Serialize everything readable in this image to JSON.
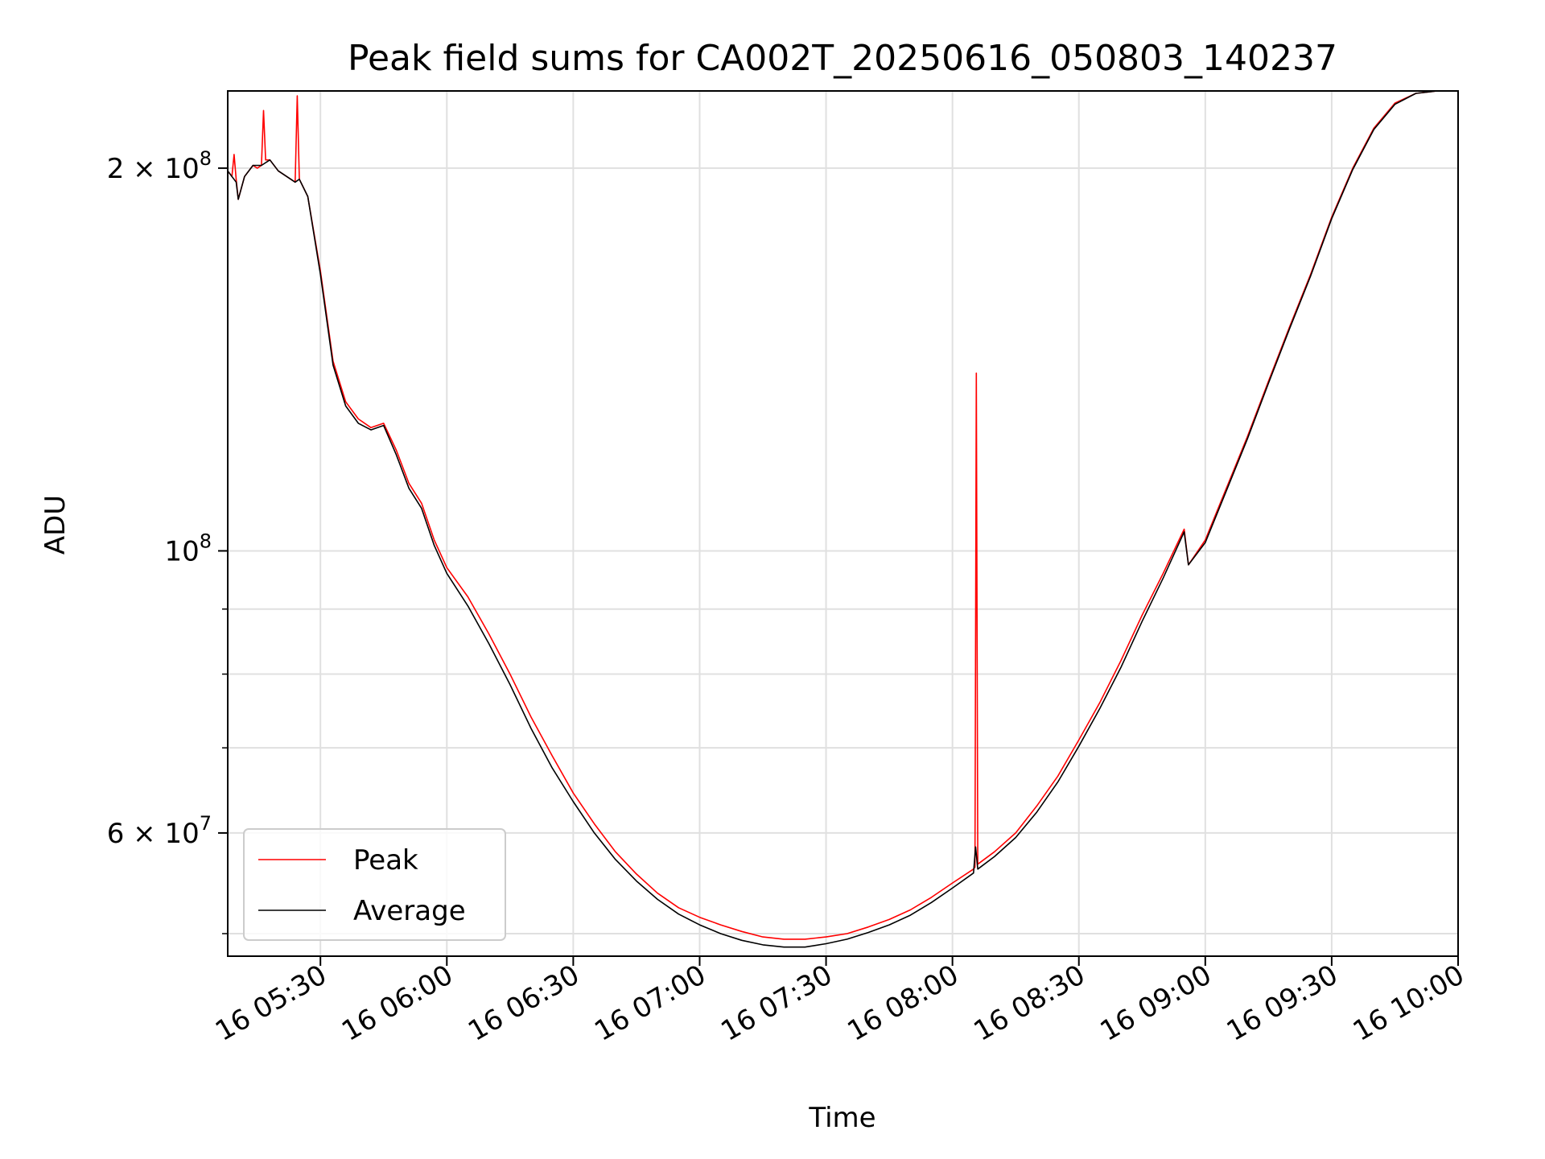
{
  "chart_data": {
    "type": "line",
    "title": "Peak field sums for CA002T_20250616_050803_140237",
    "xlabel": "Time",
    "ylabel": "ADU",
    "y_scale": "log",
    "ylim": [
      48000000,
      230000000
    ],
    "xlim": [
      "2025-06-16 05:08",
      "2025-06-16 10:00"
    ],
    "x_ticks": [
      {
        "t": "2025-06-16 05:30",
        "label": "16 05:30"
      },
      {
        "t": "2025-06-16 06:00",
        "label": "16 06:00"
      },
      {
        "t": "2025-06-16 06:30",
        "label": "16 06:30"
      },
      {
        "t": "2025-06-16 07:00",
        "label": "16 07:00"
      },
      {
        "t": "2025-06-16 07:30",
        "label": "16 07:30"
      },
      {
        "t": "2025-06-16 08:00",
        "label": "16 08:00"
      },
      {
        "t": "2025-06-16 08:30",
        "label": "16 08:30"
      },
      {
        "t": "2025-06-16 09:00",
        "label": "16 09:00"
      },
      {
        "t": "2025-06-16 09:30",
        "label": "16 09:30"
      },
      {
        "t": "2025-06-16 10:00",
        "label": "16 10:00"
      }
    ],
    "y_major_ticks": [
      {
        "v": 100000000,
        "base": "10",
        "exp": "8"
      },
      {
        "v": 200000000,
        "base": "2 × 10",
        "exp": "8"
      },
      {
        "v": 60000000,
        "base": "6 × 10",
        "exp": "7"
      }
    ],
    "y_minor_ticks": [
      50000000,
      70000000,
      80000000,
      90000000
    ],
    "grid": true,
    "legend_position": "lower-left",
    "series": [
      {
        "name": "Peak",
        "color": "#ff0000",
        "points": [
          [
            "2025-06-16 05:08",
            199000000
          ],
          [
            "2025-06-16 05:09",
            197000000
          ],
          [
            "2025-06-16 05:09:30",
            205000000
          ],
          [
            "2025-06-16 05:10",
            196000000
          ],
          [
            "2025-06-16 05:10:30",
            189000000
          ],
          [
            "2025-06-16 05:12",
            197000000
          ],
          [
            "2025-06-16 05:14",
            201000000
          ],
          [
            "2025-06-16 05:15",
            200000000
          ],
          [
            "2025-06-16 05:16",
            201000000
          ],
          [
            "2025-06-16 05:16:30",
            222000000
          ],
          [
            "2025-06-16 05:17",
            203000000
          ],
          [
            "2025-06-16 05:18",
            203000000
          ],
          [
            "2025-06-16 05:20",
            199000000
          ],
          [
            "2025-06-16 05:22",
            197000000
          ],
          [
            "2025-06-16 05:24",
            195000000
          ],
          [
            "2025-06-16 05:24:30",
            228000000
          ],
          [
            "2025-06-16 05:25",
            196000000
          ],
          [
            "2025-06-16 05:27",
            190000000
          ],
          [
            "2025-06-16 05:30",
            166000000
          ],
          [
            "2025-06-16 05:33",
            141000000
          ],
          [
            "2025-06-16 05:36",
            131000000
          ],
          [
            "2025-06-16 05:39",
            127000000
          ],
          [
            "2025-06-16 05:42",
            125000000
          ],
          [
            "2025-06-16 05:45",
            126000000
          ],
          [
            "2025-06-16 05:48",
            120000000
          ],
          [
            "2025-06-16 05:51",
            113000000
          ],
          [
            "2025-06-16 05:54",
            109000000
          ],
          [
            "2025-06-16 05:57",
            102000000
          ],
          [
            "2025-06-16 06:00",
            97000000
          ],
          [
            "2025-06-16 06:05",
            92000000
          ],
          [
            "2025-06-16 06:10",
            86000000
          ],
          [
            "2025-06-16 06:15",
            80000000
          ],
          [
            "2025-06-16 06:20",
            74000000
          ],
          [
            "2025-06-16 06:25",
            69000000
          ],
          [
            "2025-06-16 06:30",
            64500000
          ],
          [
            "2025-06-16 06:35",
            61000000
          ],
          [
            "2025-06-16 06:40",
            58000000
          ],
          [
            "2025-06-16 06:45",
            55700000
          ],
          [
            "2025-06-16 06:50",
            53800000
          ],
          [
            "2025-06-16 06:55",
            52400000
          ],
          [
            "2025-06-16 07:00",
            51500000
          ],
          [
            "2025-06-16 07:05",
            50800000
          ],
          [
            "2025-06-16 07:10",
            50200000
          ],
          [
            "2025-06-16 07:15",
            49700000
          ],
          [
            "2025-06-16 07:20",
            49500000
          ],
          [
            "2025-06-16 07:25",
            49500000
          ],
          [
            "2025-06-16 07:30",
            49700000
          ],
          [
            "2025-06-16 07:35",
            50000000
          ],
          [
            "2025-06-16 07:40",
            50600000
          ],
          [
            "2025-06-16 07:45",
            51300000
          ],
          [
            "2025-06-16 07:50",
            52200000
          ],
          [
            "2025-06-16 07:55",
            53400000
          ],
          [
            "2025-06-16 08:00",
            54800000
          ],
          [
            "2025-06-16 08:05",
            56200000
          ],
          [
            "2025-06-16 08:05:20",
            56400000
          ],
          [
            "2025-06-16 08:05:40",
            138000000
          ],
          [
            "2025-06-16 08:06",
            56700000
          ],
          [
            "2025-06-16 08:10",
            58000000
          ],
          [
            "2025-06-16 08:15",
            60000000
          ],
          [
            "2025-06-16 08:20",
            63000000
          ],
          [
            "2025-06-16 08:25",
            66500000
          ],
          [
            "2025-06-16 08:30",
            71000000
          ],
          [
            "2025-06-16 08:35",
            76000000
          ],
          [
            "2025-06-16 08:40",
            82000000
          ],
          [
            "2025-06-16 08:45",
            89000000
          ],
          [
            "2025-06-16 08:50",
            96000000
          ],
          [
            "2025-06-16 08:55",
            104000000
          ],
          [
            "2025-06-16 08:56",
            97500000
          ],
          [
            "2025-06-16 09:00",
            102000000
          ],
          [
            "2025-06-16 09:05",
            112000000
          ],
          [
            "2025-06-16 09:10",
            123000000
          ],
          [
            "2025-06-16 09:15",
            136000000
          ],
          [
            "2025-06-16 09:20",
            150000000
          ],
          [
            "2025-06-16 09:25",
            165000000
          ],
          [
            "2025-06-16 09:30",
            183000000
          ],
          [
            "2025-06-16 09:35",
            200000000
          ],
          [
            "2025-06-16 09:40",
            215000000
          ],
          [
            "2025-06-16 09:45",
            225000000
          ],
          [
            "2025-06-16 09:50",
            229000000
          ],
          [
            "2025-06-16 09:55",
            230000000
          ],
          [
            "2025-06-16 10:00",
            230000000
          ]
        ]
      },
      {
        "name": "Average",
        "color": "#000000",
        "points": [
          [
            "2025-06-16 05:08",
            199000000
          ],
          [
            "2025-06-16 05:09",
            197000000
          ],
          [
            "2025-06-16 05:10",
            195000000
          ],
          [
            "2025-06-16 05:10:30",
            189000000
          ],
          [
            "2025-06-16 05:12",
            197000000
          ],
          [
            "2025-06-16 05:14",
            201000000
          ],
          [
            "2025-06-16 05:16",
            201000000
          ],
          [
            "2025-06-16 05:18",
            203000000
          ],
          [
            "2025-06-16 05:20",
            199000000
          ],
          [
            "2025-06-16 05:22",
            197000000
          ],
          [
            "2025-06-16 05:24",
            195000000
          ],
          [
            "2025-06-16 05:25",
            196000000
          ],
          [
            "2025-06-16 05:27",
            190000000
          ],
          [
            "2025-06-16 05:30",
            165000000
          ],
          [
            "2025-06-16 05:33",
            140000000
          ],
          [
            "2025-06-16 05:36",
            130000000
          ],
          [
            "2025-06-16 05:39",
            126000000
          ],
          [
            "2025-06-16 05:42",
            124500000
          ],
          [
            "2025-06-16 05:45",
            125500000
          ],
          [
            "2025-06-16 05:48",
            119000000
          ],
          [
            "2025-06-16 05:51",
            112000000
          ],
          [
            "2025-06-16 05:54",
            108000000
          ],
          [
            "2025-06-16 05:57",
            101000000
          ],
          [
            "2025-06-16 06:00",
            96000000
          ],
          [
            "2025-06-16 06:05",
            90500000
          ],
          [
            "2025-06-16 06:10",
            84500000
          ],
          [
            "2025-06-16 06:15",
            78500000
          ],
          [
            "2025-06-16 06:20",
            72500000
          ],
          [
            "2025-06-16 06:25",
            67500000
          ],
          [
            "2025-06-16 06:30",
            63500000
          ],
          [
            "2025-06-16 06:35",
            60000000
          ],
          [
            "2025-06-16 06:40",
            57200000
          ],
          [
            "2025-06-16 06:45",
            55000000
          ],
          [
            "2025-06-16 06:50",
            53200000
          ],
          [
            "2025-06-16 06:55",
            51800000
          ],
          [
            "2025-06-16 07:00",
            50800000
          ],
          [
            "2025-06-16 07:05",
            50000000
          ],
          [
            "2025-06-16 07:10",
            49400000
          ],
          [
            "2025-06-16 07:15",
            49000000
          ],
          [
            "2025-06-16 07:20",
            48800000
          ],
          [
            "2025-06-16 07:25",
            48800000
          ],
          [
            "2025-06-16 07:30",
            49100000
          ],
          [
            "2025-06-16 07:35",
            49500000
          ],
          [
            "2025-06-16 07:40",
            50100000
          ],
          [
            "2025-06-16 07:45",
            50800000
          ],
          [
            "2025-06-16 07:50",
            51700000
          ],
          [
            "2025-06-16 07:55",
            52900000
          ],
          [
            "2025-06-16 08:00",
            54300000
          ],
          [
            "2025-06-16 08:05",
            55800000
          ],
          [
            "2025-06-16 08:05:30",
            58500000
          ],
          [
            "2025-06-16 08:06",
            56200000
          ],
          [
            "2025-06-16 08:10",
            57500000
          ],
          [
            "2025-06-16 08:15",
            59500000
          ],
          [
            "2025-06-16 08:20",
            62300000
          ],
          [
            "2025-06-16 08:25",
            65800000
          ],
          [
            "2025-06-16 08:30",
            70200000
          ],
          [
            "2025-06-16 08:35",
            75200000
          ],
          [
            "2025-06-16 08:40",
            81000000
          ],
          [
            "2025-06-16 08:45",
            88000000
          ],
          [
            "2025-06-16 08:50",
            95200000
          ],
          [
            "2025-06-16 08:55",
            103500000
          ],
          [
            "2025-06-16 08:56",
            97500000
          ],
          [
            "2025-06-16 09:00",
            101500000
          ],
          [
            "2025-06-16 09:05",
            111500000
          ],
          [
            "2025-06-16 09:10",
            122500000
          ],
          [
            "2025-06-16 09:15",
            135500000
          ],
          [
            "2025-06-16 09:20",
            149500000
          ],
          [
            "2025-06-16 09:25",
            164500000
          ],
          [
            "2025-06-16 09:30",
            182500000
          ],
          [
            "2025-06-16 09:35",
            199500000
          ],
          [
            "2025-06-16 09:40",
            214500000
          ],
          [
            "2025-06-16 09:45",
            224500000
          ],
          [
            "2025-06-16 09:50",
            229000000
          ],
          [
            "2025-06-16 09:55",
            230000000
          ],
          [
            "2025-06-16 10:00",
            230000000
          ]
        ]
      }
    ]
  }
}
